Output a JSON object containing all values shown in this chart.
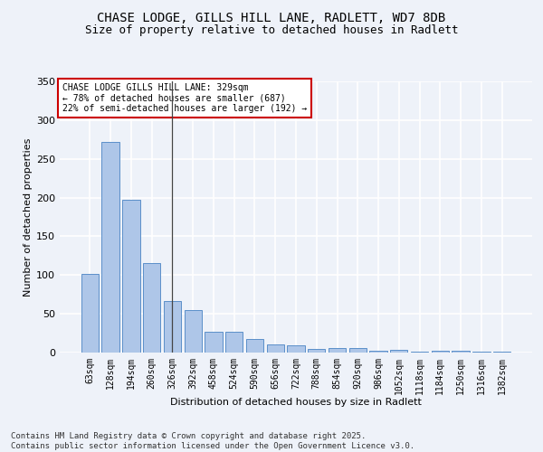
{
  "title_line1": "CHASE LODGE, GILLS HILL LANE, RADLETT, WD7 8DB",
  "title_line2": "Size of property relative to detached houses in Radlett",
  "xlabel": "Distribution of detached houses by size in Radlett",
  "ylabel": "Number of detached properties",
  "categories": [
    "63sqm",
    "128sqm",
    "194sqm",
    "260sqm",
    "326sqm",
    "392sqm",
    "458sqm",
    "524sqm",
    "590sqm",
    "656sqm",
    "722sqm",
    "788sqm",
    "854sqm",
    "920sqm",
    "986sqm",
    "1052sqm",
    "1118sqm",
    "1184sqm",
    "1250sqm",
    "1316sqm",
    "1382sqm"
  ],
  "values": [
    102,
    272,
    197,
    115,
    67,
    55,
    27,
    27,
    18,
    10,
    9,
    5,
    6,
    6,
    2,
    4,
    1,
    2,
    2,
    1,
    1
  ],
  "bar_color": "#aec6e8",
  "bar_edge_color": "#5b8fc9",
  "annotation_text": "CHASE LODGE GILLS HILL LANE: 329sqm\n← 78% of detached houses are smaller (687)\n22% of semi-detached houses are larger (192) →",
  "vline_bar_index": 4,
  "ylim": [
    0,
    350
  ],
  "yticks": [
    0,
    50,
    100,
    150,
    200,
    250,
    300,
    350
  ],
  "background_color": "#eef2f9",
  "grid_color": "#ffffff",
  "footer_text": "Contains HM Land Registry data © Crown copyright and database right 2025.\nContains public sector information licensed under the Open Government Licence v3.0.",
  "annotation_box_facecolor": "#ffffff",
  "annotation_box_edgecolor": "#cc0000",
  "title_fontsize": 10,
  "subtitle_fontsize": 9,
  "axis_label_fontsize": 8,
  "tick_fontsize": 7,
  "annotation_fontsize": 7,
  "footer_fontsize": 6.5
}
